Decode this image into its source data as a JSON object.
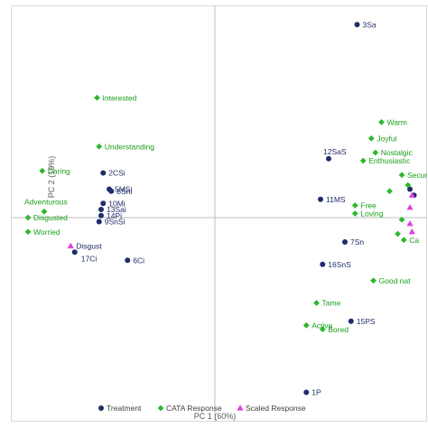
{
  "chart_data": {
    "type": "scatter",
    "xlabel": "PC 1 (60%)",
    "ylabel": "PC 2 (19%)",
    "xlim": [
      -1.0,
      1.0
    ],
    "ylim": [
      -1.0,
      1.0
    ],
    "grid": false,
    "legend_position": "bottom",
    "colors": {
      "Treatment": "#1f2d6b",
      "CATA Response": "#2db82d",
      "Scaled Response": "#e040e0",
      "cata_label": "#1a9e1a",
      "axis": "#bfbfbf",
      "border": "#d9d9d9"
    },
    "series": [
      {
        "name": "Treatment",
        "marker": "circle",
        "points": [
          {
            "label": "3Sa",
            "x": 0.7,
            "y": 0.95
          },
          {
            "label": "12SaS",
            "x": 0.56,
            "y": 0.29
          },
          {
            "label": "2CSi",
            "x": -0.55,
            "y": 0.22
          },
          {
            "label": "5MSi",
            "x": -0.52,
            "y": 0.14
          },
          {
            "label": "8Sni",
            "x": -0.51,
            "y": 0.13
          },
          {
            "label": "10Mi",
            "x": -0.55,
            "y": 0.07
          },
          {
            "label": "13Sai",
            "x": -0.56,
            "y": 0.04
          },
          {
            "label": "14Pi",
            "x": -0.56,
            "y": 0.01
          },
          {
            "label": "9SnSi",
            "x": -0.57,
            "y": -0.02
          },
          {
            "label": "11MS",
            "x": 0.52,
            "y": 0.09
          },
          {
            "label": "7Sn",
            "x": 0.64,
            "y": -0.12
          },
          {
            "label": "16SnS",
            "x": 0.53,
            "y": -0.23
          },
          {
            "label": "15PS",
            "x": 0.67,
            "y": -0.51
          },
          {
            "label": "17Ci",
            "x": -0.69,
            "y": -0.17
          },
          {
            "label": "6Ci",
            "x": -0.43,
            "y": -0.21
          },
          {
            "label": "1P",
            "x": 0.45,
            "y": -0.86
          },
          {
            "label": "",
            "x": 0.96,
            "y": 0.14
          },
          {
            "label": "",
            "x": 0.98,
            "y": 0.11
          }
        ]
      },
      {
        "name": "CATA Response",
        "marker": "diamond",
        "points": [
          {
            "label": "Interested",
            "x": -0.58,
            "y": 0.59
          },
          {
            "label": "Understanding",
            "x": -0.57,
            "y": 0.35
          },
          {
            "label": "Daring",
            "x": -0.85,
            "y": 0.23
          },
          {
            "label": "Adventurous",
            "x": -0.84,
            "y": 0.03
          },
          {
            "label": "Disgusted",
            "x": -0.92,
            "y": 0.0
          },
          {
            "label": "Worried",
            "x": -0.92,
            "y": -0.07
          },
          {
            "label": "Warm",
            "x": 0.82,
            "y": 0.47
          },
          {
            "label": "Joyful",
            "x": 0.77,
            "y": 0.39
          },
          {
            "label": "Nostalgic",
            "x": 0.79,
            "y": 0.32
          },
          {
            "label": "Enthusiastic",
            "x": 0.73,
            "y": 0.28
          },
          {
            "label": "Secur",
            "x": 0.92,
            "y": 0.21
          },
          {
            "label": "",
            "x": 0.95,
            "y": 0.16
          },
          {
            "label": "",
            "x": 0.86,
            "y": 0.13
          },
          {
            "label": "Free",
            "x": 0.69,
            "y": 0.06
          },
          {
            "label": "Loving",
            "x": 0.69,
            "y": 0.02
          },
          {
            "label": "",
            "x": 0.92,
            "y": -0.01
          },
          {
            "label": "",
            "x": 0.9,
            "y": -0.08
          },
          {
            "label": "Ca",
            "x": 0.93,
            "y": -0.11
          },
          {
            "label": "Good nat",
            "x": 0.78,
            "y": -0.31
          },
          {
            "label": "Tame",
            "x": 0.5,
            "y": -0.42
          },
          {
            "label": "Active",
            "x": 0.45,
            "y": -0.53
          },
          {
            "label": "Bored",
            "x": 0.53,
            "y": -0.55
          }
        ]
      },
      {
        "name": "Scaled Response",
        "marker": "triangle",
        "points": [
          {
            "label": "Disgust",
            "x": -0.71,
            "y": -0.14
          },
          {
            "label": "",
            "x": 0.97,
            "y": 0.11
          },
          {
            "label": "",
            "x": 0.96,
            "y": 0.05
          },
          {
            "label": "",
            "x": 0.96,
            "y": -0.03
          },
          {
            "label": "",
            "x": 0.97,
            "y": -0.07
          }
        ]
      }
    ],
    "label_placement": {
      "3Sa": "right",
      "12SaS": "top",
      "2CSi": "right",
      "5MSi": "right",
      "8Sni": "right",
      "10Mi": "right",
      "13Sai": "right",
      "14Pi": "right",
      "9SnSi": "right",
      "11MS": "right",
      "7Sn": "right",
      "16SnS": "right",
      "15PS": "right",
      "17Ci": "right-below",
      "6Ci": "right",
      "1P": "right",
      "Interested": "right",
      "Understanding": "right",
      "Daring": "right",
      "Adventurous": "above",
      "Disgusted": "right",
      "Worried": "right",
      "Warm": "right",
      "Joyful": "right",
      "Nostalgic": "right",
      "Enthusiastic": "right",
      "Secur": "right",
      "Free": "right",
      "Loving": "right",
      "Ca": "right",
      "Good nat": "right",
      "Tame": "right",
      "Active": "right",
      "Bored": "right",
      "Disgust": "right"
    }
  }
}
